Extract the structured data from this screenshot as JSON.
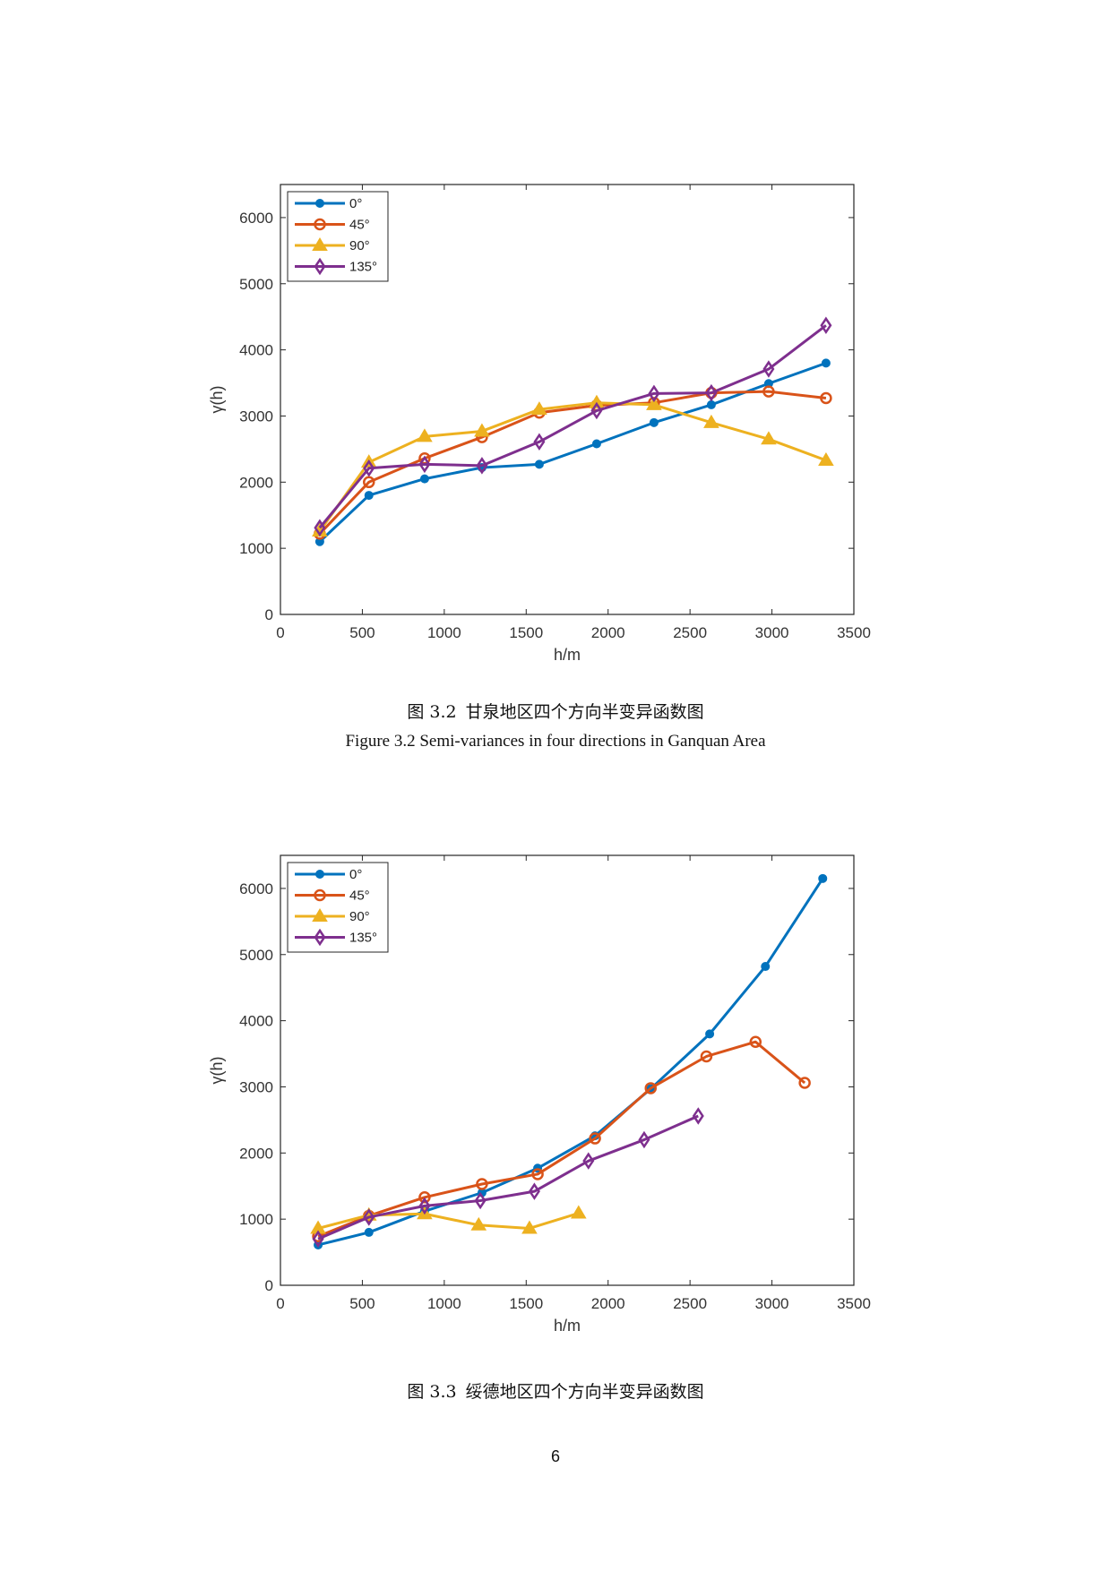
{
  "chart_data": [
    {
      "type": "line",
      "title": "",
      "xlabel": "h/m",
      "ylabel": "γ(h)",
      "xlim": [
        0,
        3500
      ],
      "ylim": [
        0,
        6500
      ],
      "xticks": [
        0,
        500,
        1000,
        1500,
        2000,
        2500,
        3000,
        3500
      ],
      "yticks": [
        0,
        1000,
        2000,
        3000,
        4000,
        5000,
        6000
      ],
      "xtick_labels": [
        "0",
        "500",
        "1000",
        "1500",
        "2000",
        "2500",
        "3000",
        "3500"
      ],
      "ytick_labels": [
        "0",
        "1000",
        "2000",
        "3000",
        "4000",
        "5000",
        "6000"
      ],
      "grid": false,
      "legend_position": "top-left",
      "series": [
        {
          "name": "0°",
          "color": "#0072BD",
          "marker": "dot",
          "x": [
            240,
            540,
            880,
            1230,
            1580,
            1930,
            2280,
            2630,
            2980,
            3330
          ],
          "y": [
            1100,
            1800,
            2050,
            2220,
            2270,
            2580,
            2900,
            3170,
            3490,
            3800
          ]
        },
        {
          "name": "45°",
          "color": "#D95319",
          "marker": "circle",
          "x": [
            240,
            540,
            880,
            1230,
            1580,
            1930,
            2280,
            2630,
            2980,
            3330
          ],
          "y": [
            1220,
            2000,
            2360,
            2680,
            3050,
            3160,
            3200,
            3350,
            3370,
            3270
          ]
        },
        {
          "name": "90°",
          "color": "#EDB120",
          "marker": "triangle",
          "x": [
            240,
            540,
            880,
            1230,
            1580,
            1930,
            2280,
            2630,
            2980,
            3330
          ],
          "y": [
            1260,
            2300,
            2690,
            2770,
            3100,
            3200,
            3170,
            2900,
            2650,
            2330
          ]
        },
        {
          "name": "135°",
          "color": "#7E2F8E",
          "marker": "diamond",
          "x": [
            240,
            540,
            880,
            1230,
            1580,
            1930,
            2280,
            2630,
            2980,
            3330
          ],
          "y": [
            1310,
            2210,
            2270,
            2250,
            2610,
            3080,
            3340,
            3350,
            3710,
            4370
          ]
        }
      ]
    },
    {
      "type": "line",
      "title": "",
      "xlabel": "h/m",
      "ylabel": "γ(h)",
      "xlim": [
        0,
        3500
      ],
      "ylim": [
        0,
        6500
      ],
      "xticks": [
        0,
        500,
        1000,
        1500,
        2000,
        2500,
        3000,
        3500
      ],
      "yticks": [
        0,
        1000,
        2000,
        3000,
        4000,
        5000,
        6000
      ],
      "xtick_labels": [
        "0",
        "500",
        "1000",
        "1500",
        "2000",
        "2500",
        "3000",
        "3500"
      ],
      "ytick_labels": [
        "0",
        "1000",
        "2000",
        "3000",
        "4000",
        "5000",
        "6000"
      ],
      "grid": false,
      "legend_position": "top-left",
      "series": [
        {
          "name": "0°",
          "color": "#0072BD",
          "marker": "dot",
          "x": [
            230,
            540,
            880,
            1230,
            1570,
            1920,
            2260,
            2620,
            2960,
            3310
          ],
          "y": [
            610,
            800,
            1120,
            1400,
            1770,
            2260,
            2970,
            3800,
            4820,
            6150
          ]
        },
        {
          "name": "45°",
          "color": "#D95319",
          "marker": "circle",
          "x": [
            230,
            540,
            880,
            1230,
            1570,
            1920,
            2260,
            2600,
            2900,
            3200
          ],
          "y": [
            740,
            1050,
            1330,
            1530,
            1680,
            2220,
            2980,
            3460,
            3680,
            3060
          ]
        },
        {
          "name": "90°",
          "color": "#EDB120",
          "marker": "triangle",
          "x": [
            230,
            540,
            880,
            1210,
            1520,
            1820
          ],
          "y": [
            860,
            1060,
            1080,
            910,
            860,
            1090
          ]
        },
        {
          "name": "135°",
          "color": "#7E2F8E",
          "marker": "diamond",
          "x": [
            230,
            540,
            880,
            1220,
            1550,
            1880,
            2220,
            2550
          ],
          "y": [
            700,
            1030,
            1200,
            1280,
            1420,
            1880,
            2200,
            2560
          ]
        }
      ]
    }
  ],
  "captions": {
    "fig1_num": "图 3.2",
    "fig1_cn": "甘泉地区四个方向半变异函数图",
    "fig1_en": "Figure 3.2 Semi-variances in four directions in Ganquan Area",
    "fig2_num": "图 3.3",
    "fig2_cn": "绥德地区四个方向半变异函数图"
  },
  "page_number": "6"
}
